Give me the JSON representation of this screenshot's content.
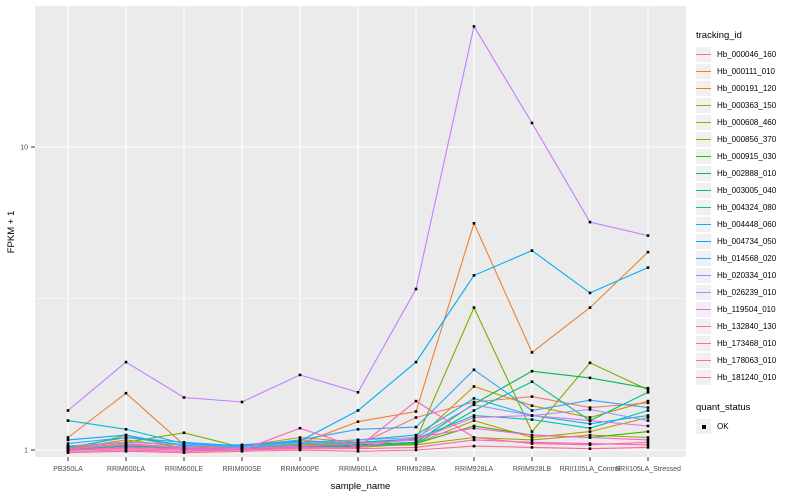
{
  "figure": {
    "bg": "#FFFFFF",
    "panel_bg": "#EBEBEB",
    "grid_color": "#FFFFFF",
    "tick_color": "#333333",
    "axis_text_color": "#4D4D4D",
    "title_color": "#000000",
    "marker_color": "#000000",
    "legend_key_bg": "#F0F0F0"
  },
  "chart_data": {
    "type": "line",
    "title": "",
    "xlabel": "sample_name",
    "ylabel": "FPKM + 1",
    "y_scale": "log10",
    "y_ticks": [
      1,
      10
    ],
    "y_minor_ticks": [
      3.162
    ],
    "ylim": [
      0.95,
      28
    ],
    "grid": true,
    "marker": "black-square",
    "legend": {
      "title": "tracking_id",
      "position": "right"
    },
    "legend2": {
      "title": "quant_status",
      "items": [
        {
          "label": "OK",
          "marker": "black-square"
        }
      ]
    },
    "categories": [
      "PB350LA",
      "RRIM600LA",
      "RRIM600LE",
      "RRIM600SE",
      "RRIM600PE",
      "RRIM901LA",
      "RRIM928BA",
      "RRIM928LA",
      "RRIM928LB",
      "RRII105LA_Control",
      "RRII105LA_Stressed"
    ],
    "series": [
      {
        "name": "Hb_000046_160",
        "color": "#F8766D",
        "values": [
          1.02,
          1.05,
          1.02,
          1.01,
          1.08,
          1.04,
          1.28,
          1.44,
          1.5,
          1.38,
          1.43
        ]
      },
      {
        "name": "Hb_000111_010",
        "color": "#EA8331",
        "values": [
          1.1,
          1.54,
          1.04,
          1.01,
          1.05,
          1.24,
          1.34,
          5.6,
          2.1,
          2.95,
          4.5
        ]
      },
      {
        "name": "Hb_000191_120",
        "color": "#D89000",
        "values": [
          1.01,
          1.08,
          1.02,
          1.03,
          1.1,
          1.06,
          1.08,
          1.62,
          1.4,
          1.28,
          1.45
        ]
      },
      {
        "name": "Hb_000363_150",
        "color": "#C09B00",
        "values": [
          1.0,
          1.12,
          1.01,
          1.02,
          1.03,
          1.02,
          1.05,
          1.25,
          1.1,
          1.15,
          1.28
        ]
      },
      {
        "name": "Hb_000608_460",
        "color": "#A3A500",
        "values": [
          1.01,
          1.03,
          1.02,
          1.01,
          1.02,
          1.03,
          1.04,
          1.1,
          1.08,
          1.12,
          1.1
        ]
      },
      {
        "name": "Hb_000856_370",
        "color": "#7CAE00",
        "values": [
          1.03,
          1.06,
          1.14,
          1.02,
          1.04,
          1.05,
          1.08,
          2.95,
          1.15,
          1.94,
          1.58
        ]
      },
      {
        "name": "Hb_000915_030",
        "color": "#39B600",
        "values": [
          1.0,
          1.02,
          1.01,
          1.01,
          1.02,
          1.03,
          1.05,
          1.2,
          1.12,
          1.1,
          1.15
        ]
      },
      {
        "name": "Hb_002888_010",
        "color": "#00BB4E",
        "values": [
          1.01,
          1.04,
          1.02,
          1.01,
          1.03,
          1.04,
          1.06,
          1.42,
          1.82,
          1.73,
          1.6
        ]
      },
      {
        "name": "Hb_003005_040",
        "color": "#00C087",
        "values": [
          1.0,
          1.03,
          1.01,
          1.02,
          1.02,
          1.03,
          1.05,
          1.35,
          1.68,
          1.25,
          1.55
        ]
      },
      {
        "name": "Hb_004324_080",
        "color": "#00C0B8",
        "values": [
          1.02,
          1.1,
          1.04,
          1.02,
          1.05,
          1.06,
          1.09,
          1.3,
          1.26,
          1.18,
          1.35
        ]
      },
      {
        "name": "Hb_004448_060",
        "color": "#00BAE0",
        "values": [
          1.25,
          1.17,
          1.05,
          1.03,
          1.06,
          1.08,
          1.12,
          1.48,
          1.3,
          1.22,
          1.3
        ]
      },
      {
        "name": "Hb_004734_050",
        "color": "#00ACFC",
        "values": [
          1.08,
          1.12,
          1.03,
          1.04,
          1.07,
          1.35,
          1.95,
          3.77,
          4.55,
          3.3,
          4.0
        ]
      },
      {
        "name": "Hb_014568_020",
        "color": "#35A2FF",
        "values": [
          1.05,
          1.1,
          1.06,
          1.03,
          1.08,
          1.17,
          1.19,
          1.84,
          1.35,
          1.46,
          1.38
        ]
      },
      {
        "name": "Hb_020334_010",
        "color": "#9590FF",
        "values": [
          1.03,
          1.06,
          1.04,
          1.02,
          1.05,
          1.08,
          1.1,
          1.41,
          1.3,
          1.36,
          1.25
        ]
      },
      {
        "name": "Hb_026239_010",
        "color": "#C77CFF",
        "values": [
          1.35,
          1.95,
          1.49,
          1.44,
          1.77,
          1.55,
          3.4,
          25.0,
          12.0,
          5.65,
          5.1
        ]
      },
      {
        "name": "Hb_119504_010",
        "color": "#E76BF3",
        "values": [
          1.01,
          1.04,
          1.02,
          1.01,
          1.03,
          1.05,
          1.08,
          1.28,
          1.3,
          1.25,
          1.2
        ]
      },
      {
        "name": "Hb_132840_130",
        "color": "#FA62DB",
        "values": [
          1.0,
          1.02,
          1.01,
          1.0,
          1.02,
          1.02,
          1.1,
          1.18,
          1.12,
          1.1,
          1.08
        ]
      },
      {
        "name": "Hb_173468_010",
        "color": "#FF61C2",
        "values": [
          0.99,
          1.0,
          0.99,
          1.0,
          1.18,
          1.02,
          1.45,
          1.1,
          1.05,
          1.04,
          1.06
        ]
      },
      {
        "name": "Hb_178063_010",
        "color": "#FF67A4",
        "values": [
          1.0,
          1.01,
          1.0,
          1.0,
          1.01,
          1.01,
          1.02,
          1.08,
          1.06,
          1.05,
          1.04
        ]
      },
      {
        "name": "Hb_181240_010",
        "color": "#FF6C90",
        "values": [
          0.98,
          0.99,
          0.98,
          0.99,
          1.0,
          0.99,
          1.0,
          1.03,
          1.02,
          1.01,
          1.02
        ]
      }
    ]
  }
}
